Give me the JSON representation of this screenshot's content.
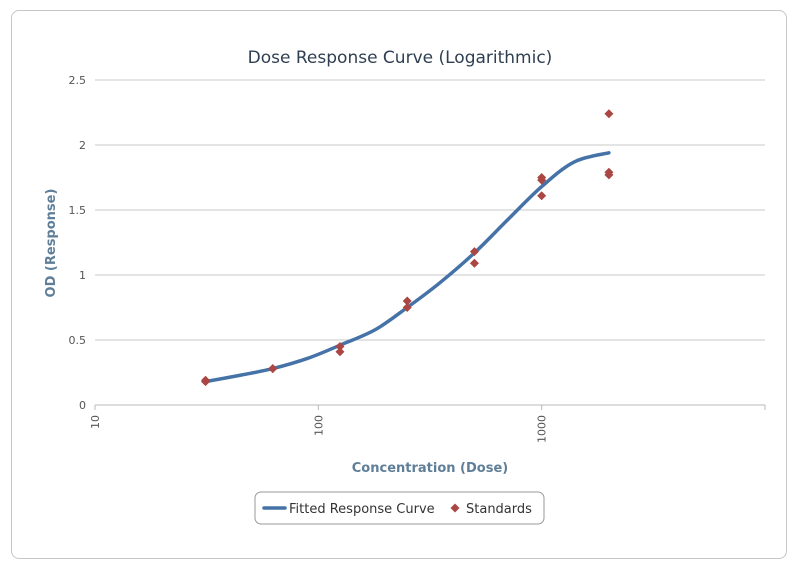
{
  "chart_data": {
    "type": "scatter",
    "title": "Dose Response Curve (Logarithmic)",
    "xlabel": "Concentration (Dose)",
    "ylabel": "OD (Response)",
    "x_scale": "log",
    "xlim": [
      10,
      10000
    ],
    "ylim": [
      0,
      2.5
    ],
    "x_ticks": [
      10,
      100,
      1000
    ],
    "y_ticks": [
      0,
      0.5,
      1,
      1.5,
      2,
      2.5
    ],
    "x_tick_labels": [
      "10",
      "100",
      "1000"
    ],
    "y_tick_labels": [
      "0",
      "0.5",
      "1",
      "1.5",
      "2",
      "2.5"
    ],
    "grid": "horizontal",
    "legend_position": "bottom",
    "series": [
      {
        "name": "Fitted Response Curve",
        "kind": "line",
        "color": "#4572a7",
        "x": [
          31.25,
          45,
          62.5,
          90,
          125,
          180,
          250,
          350,
          500,
          700,
          1000,
          1400,
          2000
        ],
        "y": [
          0.18,
          0.23,
          0.28,
          0.36,
          0.46,
          0.58,
          0.75,
          0.94,
          1.17,
          1.42,
          1.68,
          1.87,
          1.94
        ]
      },
      {
        "name": "Standards",
        "kind": "scatter",
        "color": "#aa4643",
        "x": [
          31.25,
          31.25,
          62.5,
          62.5,
          125,
          125,
          250,
          250,
          500,
          500,
          1000,
          1000,
          1000,
          2000,
          2000,
          2000
        ],
        "y": [
          0.19,
          0.18,
          0.28,
          0.28,
          0.41,
          0.45,
          0.8,
          0.75,
          1.09,
          1.18,
          1.61,
          1.73,
          1.75,
          1.77,
          1.79,
          2.24
        ]
      }
    ]
  }
}
